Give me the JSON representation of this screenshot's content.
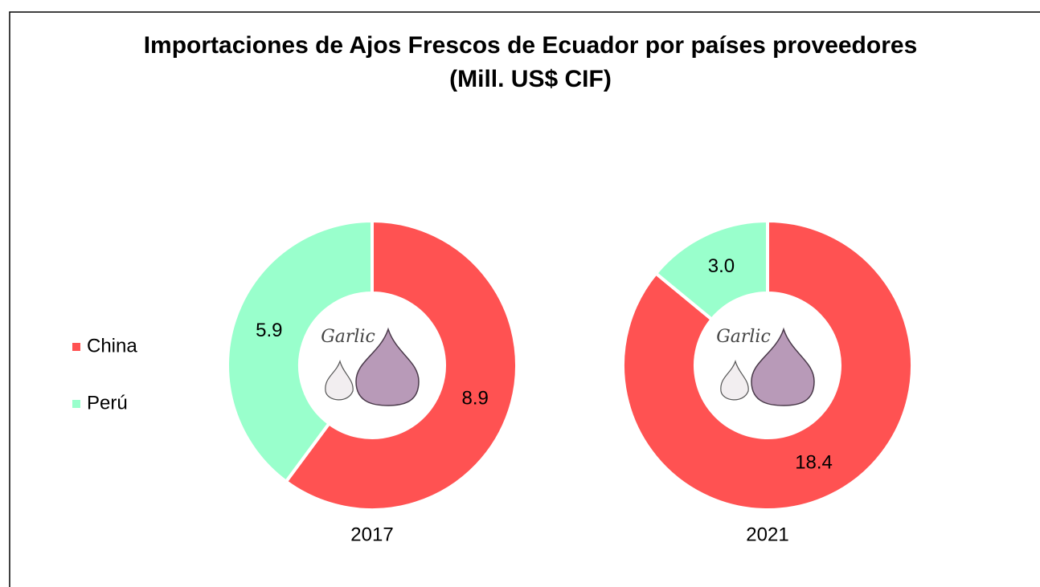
{
  "chart_data": {
    "type": "donut",
    "title": "Importaciones de Ajos Frescos de Ecuador por países proveedores",
    "subtitle": "(Mill. US$ CIF)",
    "categories": [
      "China",
      "Perú"
    ],
    "colors": [
      "#ff5252",
      "#99ffcc"
    ],
    "legend": "left",
    "center_image_text": "Garlic",
    "series": [
      {
        "name": "2017",
        "values": [
          8.9,
          5.9
        ]
      },
      {
        "name": "2021",
        "values": [
          18.4,
          3.0
        ],
        "value_labels": [
          "18.4",
          "3.0"
        ]
      }
    ]
  }
}
